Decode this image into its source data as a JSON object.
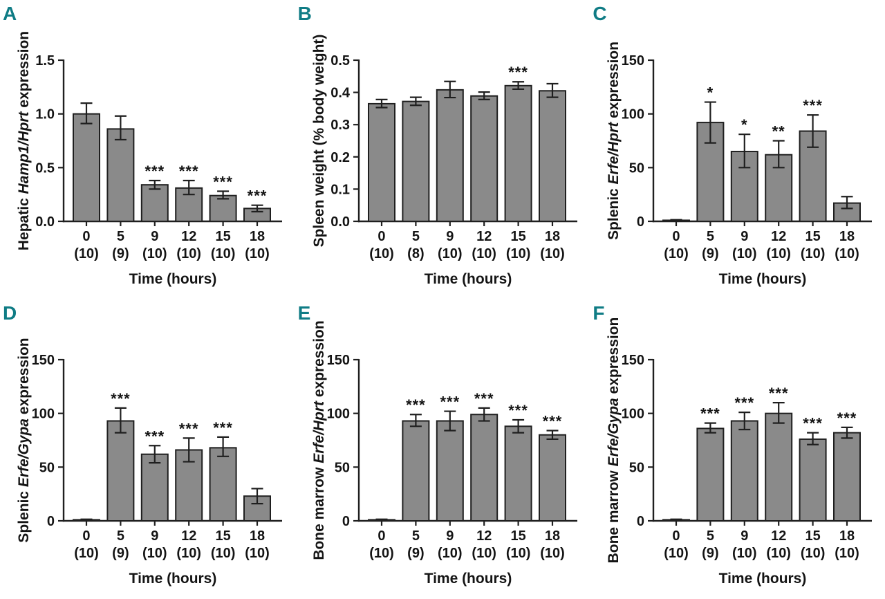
{
  "figure": {
    "background": "#ffffff",
    "panel_letter_color": "#0f7c85",
    "bar_fill": "#8a8a8a",
    "bar_stroke": "#1f1f1f",
    "axis_color": "#1f1f1f"
  },
  "chart_data": [
    {
      "panel": "A",
      "type": "bar",
      "ylabel_parts": [
        {
          "text": "Hepatic ",
          "italic": false
        },
        {
          "text": "Hamp1/Hprt",
          "italic": true
        },
        {
          "text": " expression",
          "italic": false
        }
      ],
      "xlabel": "Time (hours)",
      "ylim": [
        0,
        1.5
      ],
      "yticks": [
        0.0,
        0.5,
        1.0,
        1.5
      ],
      "ytick_labels": [
        "0.0",
        "0.5",
        "1.0",
        "1.5"
      ],
      "categories": [
        "0",
        "5",
        "9",
        "12",
        "15",
        "18"
      ],
      "n_labels": [
        "(10)",
        "(9)",
        "(10)",
        "(10)",
        "(10)",
        "(10)"
      ],
      "values": [
        1.0,
        0.86,
        0.34,
        0.31,
        0.24,
        0.12
      ],
      "err_low": [
        0.09,
        0.1,
        0.04,
        0.06,
        0.03,
        0.03
      ],
      "err_high": [
        0.1,
        0.12,
        0.04,
        0.07,
        0.04,
        0.03
      ],
      "sig": [
        "",
        "",
        "***",
        "***",
        "***",
        "***"
      ],
      "legend": null,
      "grid": false
    },
    {
      "panel": "B",
      "type": "bar",
      "ylabel_parts": [
        {
          "text": "Spleen weight (% body weight)",
          "italic": false
        }
      ],
      "xlabel": "Time (hours)",
      "ylim": [
        0,
        0.5
      ],
      "yticks": [
        0.0,
        0.1,
        0.2,
        0.3,
        0.4,
        0.5
      ],
      "ytick_labels": [
        "0.0",
        "0.1",
        "0.2",
        "0.3",
        "0.4",
        "0.5"
      ],
      "categories": [
        "0",
        "5",
        "9",
        "12",
        "15",
        "18"
      ],
      "n_labels": [
        "(10)",
        "(8)",
        "(10)",
        "(10)",
        "(10)",
        "(10)"
      ],
      "values": [
        0.365,
        0.372,
        0.408,
        0.389,
        0.421,
        0.405
      ],
      "err_low": [
        0.012,
        0.012,
        0.024,
        0.011,
        0.011,
        0.02
      ],
      "err_high": [
        0.013,
        0.013,
        0.026,
        0.012,
        0.012,
        0.022
      ],
      "sig": [
        "",
        "",
        "",
        "",
        "***",
        ""
      ],
      "legend": null,
      "grid": false
    },
    {
      "panel": "C",
      "type": "bar",
      "ylabel_parts": [
        {
          "text": "Splenic ",
          "italic": false
        },
        {
          "text": "Erfe/Hprt",
          "italic": true
        },
        {
          "text": " expression",
          "italic": false
        }
      ],
      "xlabel": "Time (hours)",
      "ylim": [
        0,
        150
      ],
      "yticks": [
        0,
        50,
        100,
        150
      ],
      "ytick_labels": [
        "0",
        "50",
        "100",
        "150"
      ],
      "categories": [
        "0",
        "5",
        "9",
        "12",
        "15",
        "18"
      ],
      "n_labels": [
        "(10)",
        "(9)",
        "(10)",
        "(10)",
        "(10)",
        "(10)"
      ],
      "values": [
        1,
        92,
        65,
        62,
        84,
        17
      ],
      "err_low": [
        0.5,
        19,
        15,
        12,
        15,
        5
      ],
      "err_high": [
        0.5,
        19,
        16,
        13,
        15,
        6
      ],
      "sig": [
        "",
        "*",
        "*",
        "**",
        "***",
        ""
      ],
      "legend": null,
      "grid": false
    },
    {
      "panel": "D",
      "type": "bar",
      "ylabel_parts": [
        {
          "text": "Splenic ",
          "italic": false
        },
        {
          "text": "Erfe/Gypa",
          "italic": true
        },
        {
          "text": " expression",
          "italic": false
        }
      ],
      "xlabel": "Time (hours)",
      "ylim": [
        0,
        150
      ],
      "yticks": [
        0,
        50,
        100,
        150
      ],
      "ytick_labels": [
        "0",
        "50",
        "100",
        "150"
      ],
      "categories": [
        "0",
        "5",
        "9",
        "12",
        "15",
        "18"
      ],
      "n_labels": [
        "(10)",
        "(9)",
        "(10)",
        "(10)",
        "(10)",
        "(10)"
      ],
      "values": [
        1,
        93,
        62,
        66,
        68,
        23
      ],
      "err_low": [
        0.5,
        11,
        8,
        11,
        8,
        7
      ],
      "err_high": [
        0.5,
        12,
        8,
        11,
        10,
        7
      ],
      "sig": [
        "",
        "***",
        "***",
        "***",
        "***",
        ""
      ],
      "legend": null,
      "grid": false
    },
    {
      "panel": "E",
      "type": "bar",
      "ylabel_parts": [
        {
          "text": "Bone marrow ",
          "italic": false
        },
        {
          "text": "Erfe/Hprt",
          "italic": true
        },
        {
          "text": " expression",
          "italic": false
        }
      ],
      "xlabel": "Time (hours)",
      "ylim": [
        0,
        150
      ],
      "yticks": [
        0,
        50,
        100,
        150
      ],
      "ytick_labels": [
        "0",
        "50",
        "100",
        "150"
      ],
      "categories": [
        "0",
        "5",
        "9",
        "12",
        "15",
        "18"
      ],
      "n_labels": [
        "(10)",
        "(9)",
        "(10)",
        "(10)",
        "(10)",
        "(10)"
      ],
      "values": [
        1,
        93,
        93,
        99,
        88,
        80
      ],
      "err_low": [
        0.5,
        5,
        9,
        6,
        6,
        4
      ],
      "err_high": [
        0.5,
        6,
        9,
        6,
        6,
        4
      ],
      "sig": [
        "",
        "***",
        "***",
        "***",
        "***",
        "***"
      ],
      "legend": null,
      "grid": false
    },
    {
      "panel": "F",
      "type": "bar",
      "ylabel_parts": [
        {
          "text": "Bone marrow ",
          "italic": false
        },
        {
          "text": "Erfe/Gypa",
          "italic": true
        },
        {
          "text": " expression",
          "italic": false
        }
      ],
      "xlabel": "Time (hours)",
      "ylim": [
        0,
        150
      ],
      "yticks": [
        0,
        50,
        100,
        150
      ],
      "ytick_labels": [
        "0",
        "50",
        "100",
        "150"
      ],
      "categories": [
        "0",
        "5",
        "9",
        "12",
        "15",
        "18"
      ],
      "n_labels": [
        "(10)",
        "(9)",
        "(10)",
        "(10)",
        "(10)",
        "(10)"
      ],
      "values": [
        1,
        86,
        93,
        100,
        76,
        82
      ],
      "err_low": [
        0.5,
        4,
        8,
        9,
        5,
        5
      ],
      "err_high": [
        0.5,
        5,
        8,
        10,
        6,
        5
      ],
      "sig": [
        "",
        "***",
        "***",
        "***",
        "***",
        "***"
      ],
      "legend": null,
      "grid": false
    }
  ]
}
